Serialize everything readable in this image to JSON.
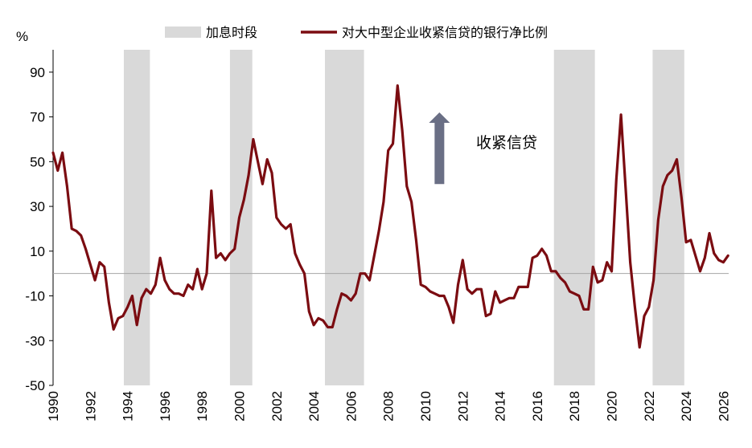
{
  "chart_data": {
    "type": "line",
    "ylabel": "%",
    "ylim": [
      -50,
      100
    ],
    "yticks": [
      90,
      70,
      50,
      30,
      10,
      -10,
      -30,
      -50
    ],
    "xlim": [
      1990,
      2026.3
    ],
    "xticks": [
      1990,
      1992,
      1994,
      1996,
      1998,
      2000,
      2002,
      2004,
      2006,
      2008,
      2010,
      2012,
      2014,
      2016,
      2018,
      2020,
      2022,
      2024,
      2026
    ],
    "shaded_label": "加息时段",
    "shaded_periods": [
      [
        1993.8,
        1995.2
      ],
      [
        1999.5,
        2000.7
      ],
      [
        2004.6,
        2006.7
      ],
      [
        2016.9,
        2019.1
      ],
      [
        2022.2,
        2023.9
      ]
    ],
    "series": [
      {
        "name": "对大中型企业收紧信贷的银行净比例",
        "color": "#7b0c11",
        "points": [
          [
            1990.0,
            54
          ],
          [
            1990.25,
            46
          ],
          [
            1990.5,
            54
          ],
          [
            1990.75,
            39
          ],
          [
            1991.0,
            20
          ],
          [
            1991.25,
            19
          ],
          [
            1991.5,
            17
          ],
          [
            1991.75,
            11
          ],
          [
            1992.0,
            4
          ],
          [
            1992.25,
            -3
          ],
          [
            1992.5,
            5
          ],
          [
            1992.75,
            3
          ],
          [
            1993.0,
            -13
          ],
          [
            1993.25,
            -25
          ],
          [
            1993.5,
            -20
          ],
          [
            1993.75,
            -19
          ],
          [
            1994.0,
            -15
          ],
          [
            1994.25,
            -10
          ],
          [
            1994.5,
            -23
          ],
          [
            1994.75,
            -11
          ],
          [
            1995.0,
            -7
          ],
          [
            1995.25,
            -9
          ],
          [
            1995.5,
            -5
          ],
          [
            1995.75,
            7
          ],
          [
            1996.0,
            -3
          ],
          [
            1996.25,
            -7
          ],
          [
            1996.5,
            -9
          ],
          [
            1996.75,
            -9
          ],
          [
            1997.0,
            -10
          ],
          [
            1997.25,
            -5
          ],
          [
            1997.5,
            -7
          ],
          [
            1997.75,
            2
          ],
          [
            1998.0,
            -7
          ],
          [
            1998.25,
            0
          ],
          [
            1998.5,
            37
          ],
          [
            1998.75,
            7
          ],
          [
            1999.0,
            9
          ],
          [
            1999.25,
            6
          ],
          [
            1999.5,
            9
          ],
          [
            1999.75,
            11
          ],
          [
            2000.0,
            25
          ],
          [
            2000.25,
            33
          ],
          [
            2000.5,
            44
          ],
          [
            2000.75,
            60
          ],
          [
            2001.0,
            50
          ],
          [
            2001.25,
            40
          ],
          [
            2001.5,
            51
          ],
          [
            2001.75,
            45
          ],
          [
            2002.0,
            25
          ],
          [
            2002.25,
            22
          ],
          [
            2002.5,
            20
          ],
          [
            2002.75,
            22
          ],
          [
            2003.0,
            9
          ],
          [
            2003.25,
            4
          ],
          [
            2003.5,
            0
          ],
          [
            2003.75,
            -17
          ],
          [
            2004.0,
            -23
          ],
          [
            2004.25,
            -20
          ],
          [
            2004.5,
            -21
          ],
          [
            2004.75,
            -24
          ],
          [
            2005.0,
            -24
          ],
          [
            2005.25,
            -16
          ],
          [
            2005.5,
            -9
          ],
          [
            2005.75,
            -10
          ],
          [
            2006.0,
            -12
          ],
          [
            2006.25,
            -9
          ],
          [
            2006.5,
            0
          ],
          [
            2006.75,
            0
          ],
          [
            2007.0,
            -3
          ],
          [
            2007.25,
            8
          ],
          [
            2007.5,
            19
          ],
          [
            2007.75,
            32
          ],
          [
            2008.0,
            55
          ],
          [
            2008.25,
            58
          ],
          [
            2008.5,
            84
          ],
          [
            2008.75,
            64
          ],
          [
            2009.0,
            39
          ],
          [
            2009.25,
            32
          ],
          [
            2009.5,
            15
          ],
          [
            2009.75,
            -5
          ],
          [
            2010.0,
            -6
          ],
          [
            2010.25,
            -8
          ],
          [
            2010.5,
            -9
          ],
          [
            2010.75,
            -10
          ],
          [
            2011.0,
            -10
          ],
          [
            2011.25,
            -15
          ],
          [
            2011.5,
            -22
          ],
          [
            2011.75,
            -5
          ],
          [
            2012.0,
            6
          ],
          [
            2012.25,
            -7
          ],
          [
            2012.5,
            -9
          ],
          [
            2012.75,
            -7
          ],
          [
            2013.0,
            -7
          ],
          [
            2013.25,
            -19
          ],
          [
            2013.5,
            -18
          ],
          [
            2013.75,
            -8
          ],
          [
            2014.0,
            -13
          ],
          [
            2014.25,
            -12
          ],
          [
            2014.5,
            -11
          ],
          [
            2014.75,
            -11
          ],
          [
            2015.0,
            -6
          ],
          [
            2015.25,
            -6
          ],
          [
            2015.5,
            -6
          ],
          [
            2015.75,
            7
          ],
          [
            2016.0,
            8
          ],
          [
            2016.25,
            11
          ],
          [
            2016.5,
            8
          ],
          [
            2016.75,
            1
          ],
          [
            2017.0,
            1
          ],
          [
            2017.25,
            -2
          ],
          [
            2017.5,
            -4
          ],
          [
            2017.75,
            -8
          ],
          [
            2018.0,
            -9
          ],
          [
            2018.25,
            -10
          ],
          [
            2018.5,
            -16
          ],
          [
            2018.75,
            -16
          ],
          [
            2019.0,
            3
          ],
          [
            2019.25,
            -4
          ],
          [
            2019.5,
            -3
          ],
          [
            2019.75,
            5
          ],
          [
            2020.0,
            1
          ],
          [
            2020.25,
            42
          ],
          [
            2020.5,
            71
          ],
          [
            2020.75,
            38
          ],
          [
            2021.0,
            5
          ],
          [
            2021.25,
            -15
          ],
          [
            2021.5,
            -33
          ],
          [
            2021.75,
            -19
          ],
          [
            2022.0,
            -15
          ],
          [
            2022.25,
            -3
          ],
          [
            2022.5,
            24
          ],
          [
            2022.75,
            39
          ],
          [
            2023.0,
            44
          ],
          [
            2023.25,
            46
          ],
          [
            2023.5,
            51
          ],
          [
            2023.75,
            34
          ],
          [
            2024.0,
            14
          ],
          [
            2024.25,
            15
          ],
          [
            2024.5,
            8
          ],
          [
            2024.75,
            1
          ],
          [
            2025.0,
            7
          ],
          [
            2025.25,
            18
          ],
          [
            2025.5,
            9
          ],
          [
            2025.75,
            6
          ],
          [
            2026.0,
            5
          ],
          [
            2026.25,
            8
          ]
        ]
      }
    ],
    "annotation": {
      "text": "收紧信贷",
      "arrow": "up",
      "arrow_color": "#6a6f85",
      "arrow_from": [
        2010.75,
        40
      ],
      "arrow_to": [
        2010.75,
        72
      ]
    },
    "legend": {
      "placement": "top-center",
      "shaded_color": "#d9d9d9",
      "line_color": "#7b0c11"
    },
    "grid": false,
    "zero_line_color": "#a6a6a6"
  }
}
